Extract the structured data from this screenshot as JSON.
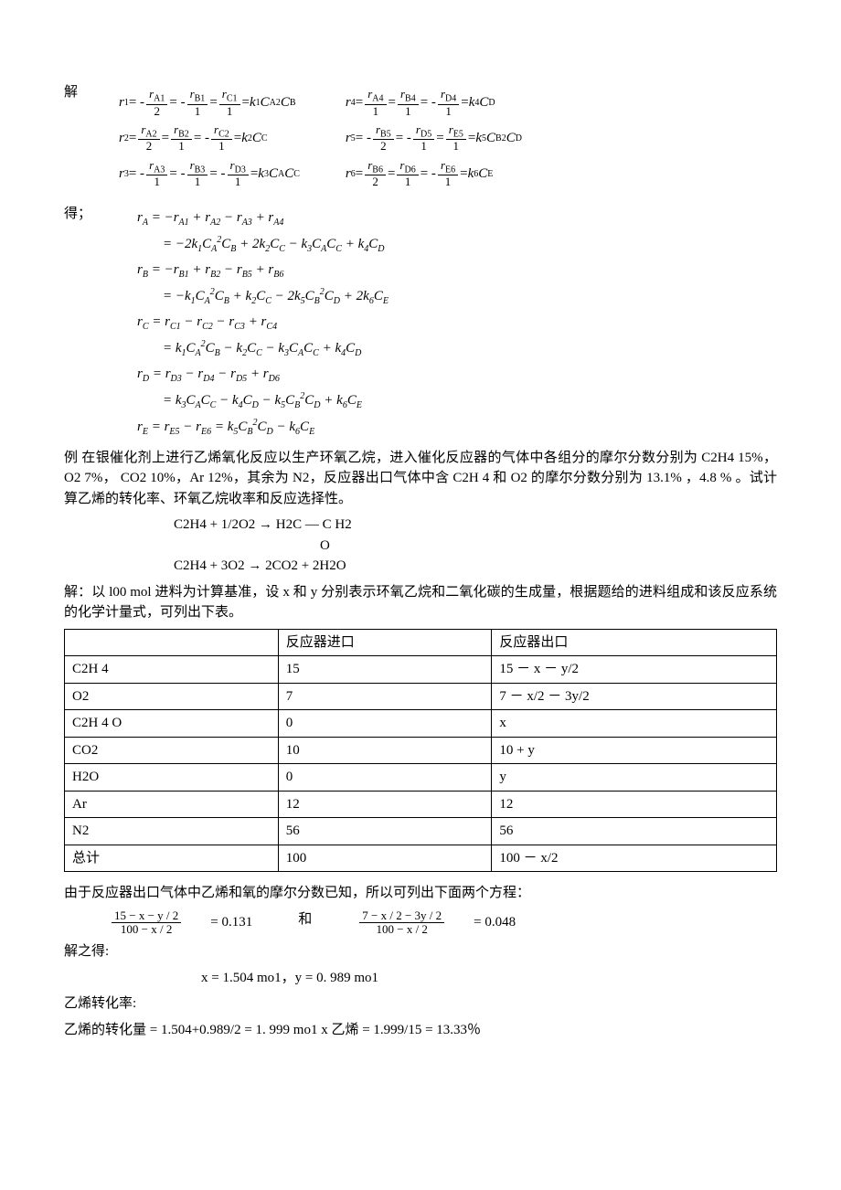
{
  "labels": {
    "jie": "解",
    "de": "得；"
  },
  "eq_set1": {
    "left": [
      {
        "r": "r",
        "rs": "1",
        "terms": [
          "r",
          "A1",
          "2",
          "r",
          "B1",
          "1",
          "r",
          "C1",
          "1"
        ],
        "signs": [
          "-",
          "-",
          ""
        ],
        "rhs_k": "k",
        "rhs_ks": "1",
        "rhs": "C",
        "rhs_s": "A",
        "rhs_p": "2",
        "rhs2": "C",
        "rhs2_s": "B"
      },
      {
        "r": "r",
        "rs": "2",
        "terms": [
          "r",
          "A2",
          "2",
          "r",
          "B2",
          "1",
          "r",
          "C2",
          "1"
        ],
        "signs": [
          "",
          "",
          "-"
        ],
        "rhs_k": "k",
        "rhs_ks": "2",
        "rhs": "C",
        "rhs_s": "C",
        "rhs_p": "",
        "rhs2": "",
        "rhs2_s": ""
      },
      {
        "r": "r",
        "rs": "3",
        "terms": [
          "r",
          "A3",
          "1",
          "r",
          "B3",
          "1",
          "r",
          "D3",
          "1"
        ],
        "signs": [
          "-",
          "-",
          "-"
        ],
        "rhs_k": "k",
        "rhs_ks": "3",
        "rhs": "C",
        "rhs_s": "A",
        "rhs_p": "",
        "rhs2": "C",
        "rhs2_s": "C"
      }
    ],
    "right": [
      {
        "r": "r",
        "rs": "4",
        "terms": [
          "r",
          "A4",
          "1",
          "r",
          "B4",
          "1",
          "r",
          "D4",
          "1"
        ],
        "signs": [
          "",
          "",
          "-"
        ],
        "rhs_k": "k",
        "rhs_ks": "4",
        "rhs": "C",
        "rhs_s": "D",
        "rhs_p": "",
        "rhs2": "",
        "rhs2_s": ""
      },
      {
        "r": "r",
        "rs": "5",
        "terms": [
          "r",
          "B5",
          "2",
          "r",
          "D5",
          "1",
          "r",
          "E5",
          "1"
        ],
        "signs": [
          "-",
          "-",
          ""
        ],
        "rhs_k": "k",
        "rhs_ks": "5",
        "rhs": "C",
        "rhs_s": "B",
        "rhs_p": "2",
        "rhs2": "C",
        "rhs2_s": "D"
      },
      {
        "r": "r",
        "rs": "6",
        "terms": [
          "r",
          "B6",
          "2",
          "r",
          "D6",
          "1",
          "r",
          "E6",
          "1"
        ],
        "signs": [
          "",
          "",
          "-"
        ],
        "rhs_k": "k",
        "rhs_ks": "6",
        "rhs": "C",
        "rhs_s": "E",
        "rhs_p": "",
        "rhs2": "",
        "rhs2_s": ""
      }
    ]
  },
  "derived": [
    {
      "lhs": "r<sub>A</sub> = −r<sub>A1</sub> + r<sub>A2</sub> − r<sub>A3</sub> + r<sub>A4</sub>",
      "rhs": "= −2k<sub>1</sub>C<sub>A</sub><sup>2</sup>C<sub>B</sub> + 2k<sub>2</sub>C<sub>C</sub> − k<sub>3</sub>C<sub>A</sub>C<sub>C</sub> + k<sub>4</sub>C<sub>D</sub>"
    },
    {
      "lhs": "r<sub>B</sub> = −r<sub>B1</sub> + r<sub>B2</sub> − r<sub>B5</sub> + r<sub>B6</sub>",
      "rhs": "= −k<sub>1</sub>C<sub>A</sub><sup>2</sup>C<sub>B</sub> + k<sub>2</sub>C<sub>C</sub> − 2k<sub>5</sub>C<sub>B</sub><sup>2</sup>C<sub>D</sub> + 2k<sub>6</sub>C<sub>E</sub>"
    },
    {
      "lhs": "r<sub>C</sub> = r<sub>C1</sub> − r<sub>C2</sub> − r<sub>C3</sub> + r<sub>C4</sub>",
      "rhs": "= k<sub>1</sub>C<sub>A</sub><sup>2</sup>C<sub>B</sub> − k<sub>2</sub>C<sub>C</sub> − k<sub>3</sub>C<sub>A</sub>C<sub>C</sub> + k<sub>4</sub>C<sub>D</sub>"
    },
    {
      "lhs": "r<sub>D</sub> = r<sub>D3</sub> − r<sub>D4</sub> − r<sub>D5</sub> + r<sub>D6</sub>",
      "rhs": "= k<sub>3</sub>C<sub>A</sub>C<sub>C</sub> − k<sub>4</sub>C<sub>D</sub> − k<sub>5</sub>C<sub>B</sub><sup>2</sup>C<sub>D</sub> + k<sub>6</sub>C<sub>E</sub>"
    },
    {
      "lhs": "r<sub>E</sub> = r<sub>E5</sub> − r<sub>E6</sub> = k<sub>5</sub>C<sub>B</sub><sup>2</sup>C<sub>D</sub> − k<sub>6</sub>C<sub>E</sub>",
      "rhs": ""
    }
  ],
  "example_text": "例  在银催化剂上进行乙烯氧化反应以生产环氧乙烷，进入催化反应器的气体中各组分的摩尔分数分别为 C2H4 15%，  O2    7%，  CO2 10%，Ar 12%，其余为 N2，反应器出口气体中含 C2H 4 和 O2 的摩尔分数分别为 13.1%  ，4.8 % 。试计算乙烯的转化率、环氧乙烷收率和反应选择性。",
  "rxn1": "C2H4 + 1/2O2  →  H2C — C H2",
  "rxn1_o": "O",
  "rxn2": "C2H4 + 3O2  →  2CO2 + 2H2O",
  "sol_text": "解：以 l00 mol 进料为计算基准，设 x 和 y 分别表示环氧乙烷和二氧化碳的生成量，根据题给的进料组成和该反应系统的化学计量式，可列出下表。",
  "table": {
    "header": [
      "",
      "反应器进口",
      "反应器出口"
    ],
    "rows": [
      [
        "C2H 4",
        "15",
        "15 － x － y/2"
      ],
      [
        "O2",
        "7",
        "7 － x/2 － 3y/2"
      ],
      [
        "C2H 4 O",
        "0",
        "x"
      ],
      [
        "CO2",
        "10",
        "10 + y"
      ],
      [
        "H2O",
        "0",
        "y"
      ],
      [
        "Ar",
        "12",
        "12"
      ],
      [
        "N2",
        "56",
        "56"
      ],
      [
        "总计",
        "100",
        "100 － x/2"
      ]
    ]
  },
  "post_table": "由于反应器出口气体中乙烯和氧的摩尔分数已知，所以可列出下面两个方程：",
  "frac_eq1": {
    "num": "15 − x − y / 2",
    "den": "100 − x / 2",
    "val": "= 0.131"
  },
  "between": "和",
  "frac_eq2": {
    "num": "7 − x / 2 − 3y / 2",
    "den": "100 − x / 2",
    "val": "= 0.048"
  },
  "solve_label": " 解之得:",
  "solve_result": "x = 1.504 mo1，y = 0. 989 mo1",
  "conv_label": "乙烯转化率:",
  "conv_line": "乙烯的转化量  = 1.504+0.989/2 = 1. 999 mo1    x 乙烯  = 1.999/15 = 13.33％"
}
